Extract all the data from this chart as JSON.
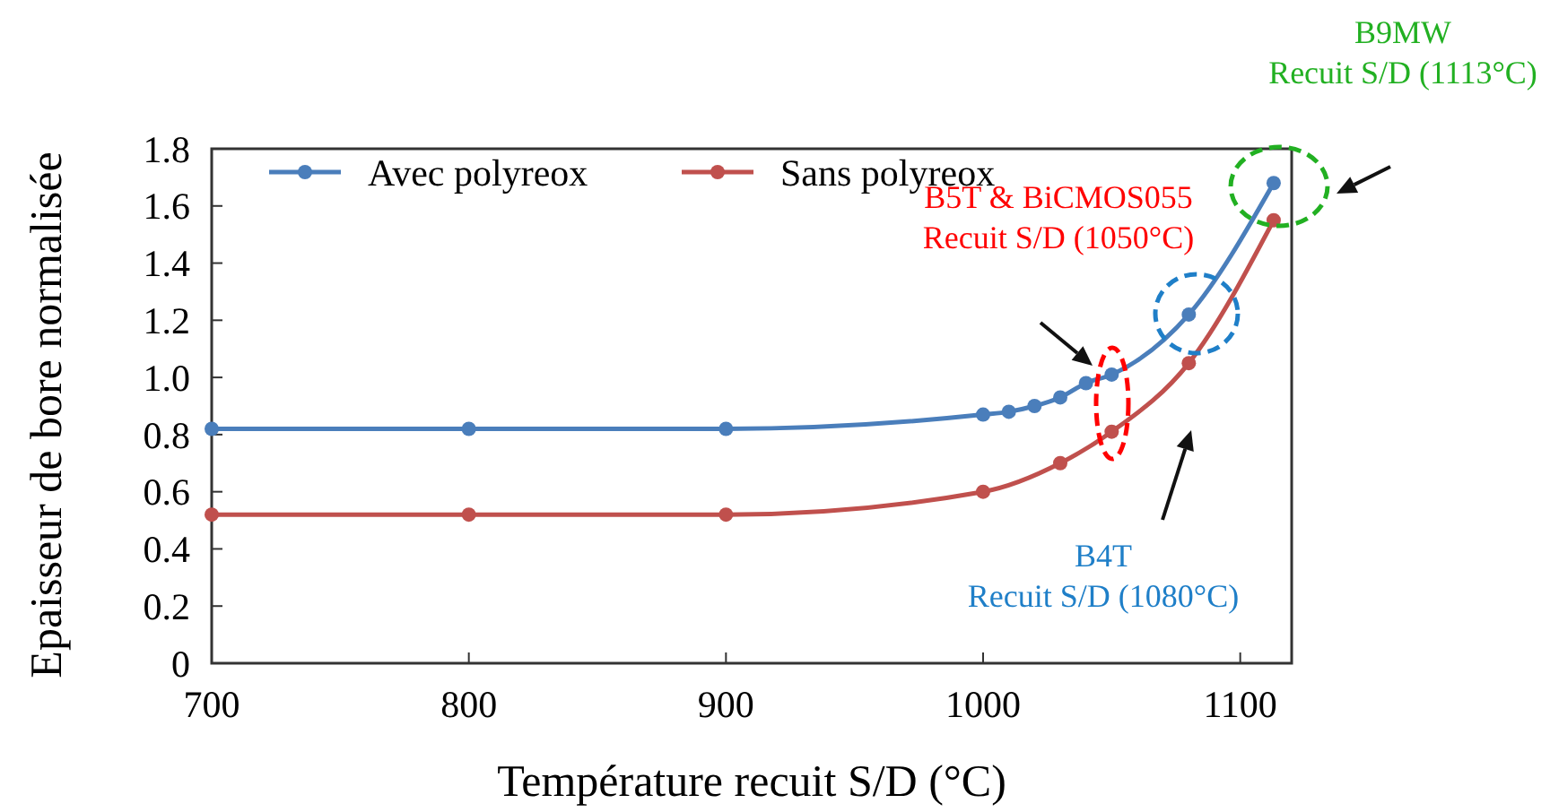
{
  "chart_data": {
    "type": "line",
    "xlabel": "Température recuit S/D (°C)",
    "ylabel": "Epaisseur de bore normalisée",
    "xlim": [
      700,
      1120
    ],
    "xticks": [
      700,
      800,
      900,
      1000,
      1100
    ],
    "ylim": [
      0,
      1.8
    ],
    "yticks": [
      0,
      0.2,
      0.4,
      0.6,
      0.8,
      {
        "value": 1,
        "label": "1.0"
      },
      1.2,
      1.4,
      1.6,
      1.8
    ],
    "grid": false,
    "legend": "top left",
    "marker": "circle",
    "line_style": "solid",
    "series": [
      {
        "name": "Avec polyreox",
        "color": "#4a7ebb",
        "x": [
          700,
          800,
          900,
          1000,
          1010,
          1020,
          1030,
          1040,
          1050,
          1080,
          1113
        ],
        "values": [
          0.82,
          0.82,
          0.82,
          0.87,
          0.88,
          0.9,
          0.93,
          0.98,
          1.01,
          1.22,
          1.68
        ]
      },
      {
        "name": "Sans polyreox",
        "color": "#c0504d",
        "x": [
          700,
          800,
          900,
          1000,
          1030,
          1050,
          1080,
          1113
        ],
        "values": [
          0.52,
          0.52,
          0.52,
          0.6,
          0.7,
          0.81,
          1.05,
          1.55
        ]
      }
    ],
    "annotations": [
      "B9MW\nRecuit S/D (1113°C)",
      "B5T & BiCMOS055\nRecuit S/D (1050°C)",
      "B4T\nRecuit S/D (1080°C)"
    ]
  }
}
